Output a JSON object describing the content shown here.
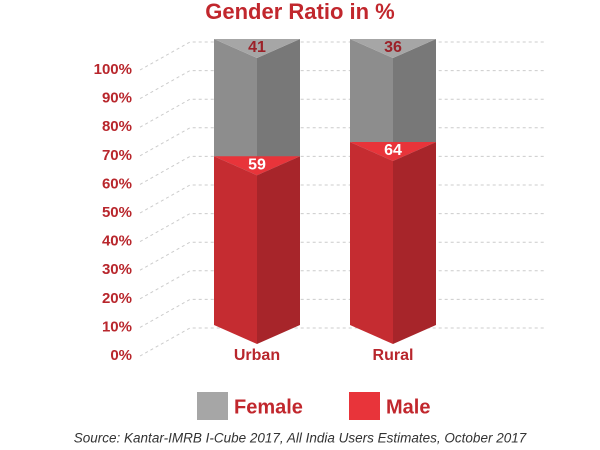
{
  "chart_data": {
    "type": "bar",
    "stacked": true,
    "title": "Gender Ratio in %",
    "categories": [
      "Urban",
      "Rural"
    ],
    "series": [
      {
        "name": "Male",
        "color": "#e8343a",
        "values": [
          59,
          64
        ]
      },
      {
        "name": "Female",
        "color": "#a6a6a6",
        "values": [
          41,
          36
        ]
      }
    ],
    "ylim": [
      0,
      100
    ],
    "yticks": [
      {
        "value": 0,
        "label": "0%"
      },
      {
        "value": 10,
        "label": "10%"
      },
      {
        "value": 20,
        "label": "20%"
      },
      {
        "value": 30,
        "label": "30%"
      },
      {
        "value": 40,
        "label": "40%"
      },
      {
        "value": 50,
        "label": "50%"
      },
      {
        "value": 60,
        "label": "60%"
      },
      {
        "value": 70,
        "label": "70%"
      },
      {
        "value": 80,
        "label": "80%"
      },
      {
        "value": 90,
        "label": "90%"
      },
      {
        "value": 100,
        "label": "100%"
      }
    ],
    "grid": true,
    "source": "Source: Kantar-IMRB I-Cube 2017, All India Users Estimates, October 2017"
  }
}
